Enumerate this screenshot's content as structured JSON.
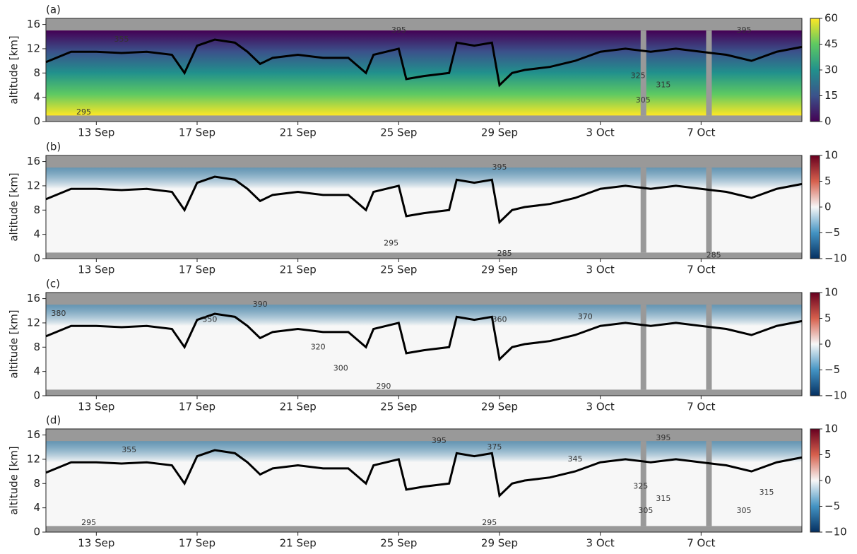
{
  "chart_data": [
    {
      "type": "heatmap",
      "label": "(a)",
      "ylabel": "altitude [km]",
      "xlim": [
        11,
        41
      ],
      "xticks": [
        {
          "value": 13,
          "label": "13 Sep"
        },
        {
          "value": 17,
          "label": "17 Sep"
        },
        {
          "value": 21,
          "label": "21 Sep"
        },
        {
          "value": 25,
          "label": "25 Sep"
        },
        {
          "value": 29,
          "label": "29 Sep"
        },
        {
          "value": 33,
          "label": "3 Oct"
        },
        {
          "value": 37,
          "label": "7 Oct"
        }
      ],
      "ylim": [
        0,
        17
      ],
      "yticks": [
        0,
        4,
        8,
        12,
        16
      ],
      "clim": [
        0,
        60
      ],
      "cticks": [
        0,
        15,
        30,
        45,
        60
      ],
      "colormap": [
        "#440154",
        "#3b528b",
        "#21918c",
        "#5ec962",
        "#fde725"
      ],
      "line": {
        "color": "#000000",
        "x": [
          11,
          12,
          13,
          14,
          15,
          16,
          16.5,
          17,
          17.7,
          18.5,
          19,
          19.5,
          20,
          21,
          22,
          23,
          23.7,
          24,
          25,
          25.3,
          26,
          27,
          27.3,
          28,
          28.7,
          29,
          29.5,
          30,
          31,
          32,
          33,
          34,
          35,
          36,
          37,
          38,
          39,
          40,
          41
        ],
        "values": [
          9.8,
          11.5,
          11.5,
          11.3,
          11.5,
          11,
          8,
          12.5,
          13.5,
          13,
          11.5,
          9.5,
          10.5,
          11,
          10.5,
          10.5,
          8,
          11,
          12,
          7,
          7.5,
          8,
          13,
          12.5,
          13,
          6,
          8,
          8.5,
          9,
          10,
          11.5,
          12,
          11.5,
          12,
          11.5,
          11,
          10,
          11.5,
          12.3
        ]
      },
      "annotations": [
        {
          "text": "355",
          "x": 14,
          "y": 13.5
        },
        {
          "text": "395",
          "x": 25,
          "y": 15
        },
        {
          "text": "325",
          "x": 34.5,
          "y": 7.5
        },
        {
          "text": "315",
          "x": 35.5,
          "y": 6
        },
        {
          "text": "305",
          "x": 34.7,
          "y": 3.5
        },
        {
          "text": "295",
          "x": 12.5,
          "y": 1.5
        },
        {
          "text": "395",
          "x": 38.7,
          "y": 15
        }
      ]
    },
    {
      "type": "heatmap",
      "label": "(b)",
      "ylabel": "altitude [km]",
      "xlim": [
        11,
        41
      ],
      "xticks": [
        {
          "value": 13,
          "label": "13 Sep"
        },
        {
          "value": 17,
          "label": "17 Sep"
        },
        {
          "value": 21,
          "label": "21 Sep"
        },
        {
          "value": 25,
          "label": "25 Sep"
        },
        {
          "value": 29,
          "label": "29 Sep"
        },
        {
          "value": 33,
          "label": "3 Oct"
        },
        {
          "value": 37,
          "label": "7 Oct"
        }
      ],
      "ylim": [
        0,
        17
      ],
      "yticks": [
        0,
        4,
        8,
        12,
        16
      ],
      "clim": [
        -10,
        10
      ],
      "cticks": [
        {
          "value": -10,
          "label": "−10"
        },
        {
          "value": -5,
          "label": "−5"
        },
        0,
        5,
        10
      ],
      "colormap": [
        "#053061",
        "#4393c3",
        "#f7f7f7",
        "#d6604d",
        "#67001f"
      ],
      "line": {
        "color": "#000000",
        "x": [
          11,
          12,
          13,
          14,
          15,
          16,
          16.5,
          17,
          17.7,
          18.5,
          19,
          19.5,
          20,
          21,
          22,
          23,
          23.7,
          24,
          25,
          25.3,
          26,
          27,
          27.3,
          28,
          28.7,
          29,
          29.5,
          30,
          31,
          32,
          33,
          34,
          35,
          36,
          37,
          38,
          39,
          40,
          41
        ],
        "values": [
          9.8,
          11.5,
          11.5,
          11.3,
          11.5,
          11,
          8,
          12.5,
          13.5,
          13,
          11.5,
          9.5,
          10.5,
          11,
          10.5,
          10.5,
          8,
          11,
          12,
          7,
          7.5,
          8,
          13,
          12.5,
          13,
          6,
          8,
          8.5,
          9,
          10,
          11.5,
          12,
          11.5,
          12,
          11.5,
          11,
          10,
          11.5,
          12.3
        ]
      },
      "annotations": [
        {
          "text": "295",
          "x": 24.7,
          "y": 2.5
        },
        {
          "text": "285",
          "x": 29.2,
          "y": 0.8
        },
        {
          "text": "285",
          "x": 37.5,
          "y": 0.5
        },
        {
          "text": "395",
          "x": 29,
          "y": 15
        }
      ]
    },
    {
      "type": "heatmap",
      "label": "(c)",
      "ylabel": "altitude [km]",
      "xlim": [
        11,
        41
      ],
      "xticks": [
        {
          "value": 13,
          "label": "13 Sep"
        },
        {
          "value": 17,
          "label": "17 Sep"
        },
        {
          "value": 21,
          "label": "21 Sep"
        },
        {
          "value": 25,
          "label": "25 Sep"
        },
        {
          "value": 29,
          "label": "29 Sep"
        },
        {
          "value": 33,
          "label": "3 Oct"
        },
        {
          "value": 37,
          "label": "7 Oct"
        }
      ],
      "ylim": [
        0,
        17
      ],
      "yticks": [
        0,
        4,
        8,
        12,
        16
      ],
      "clim": [
        -10,
        10
      ],
      "cticks": [
        {
          "value": -10,
          "label": "−10"
        },
        {
          "value": -5,
          "label": "−5"
        },
        0,
        5,
        10
      ],
      "colormap": [
        "#053061",
        "#4393c3",
        "#f7f7f7",
        "#d6604d",
        "#67001f"
      ],
      "line": {
        "color": "#000000",
        "x": [
          11,
          12,
          13,
          14,
          15,
          16,
          16.5,
          17,
          17.7,
          18.5,
          19,
          19.5,
          20,
          21,
          22,
          23,
          23.7,
          24,
          25,
          25.3,
          26,
          27,
          27.3,
          28,
          28.7,
          29,
          29.5,
          30,
          31,
          32,
          33,
          34,
          35,
          36,
          37,
          38,
          39,
          40,
          41
        ],
        "values": [
          9.8,
          11.5,
          11.5,
          11.3,
          11.5,
          11,
          8,
          12.5,
          13.5,
          13,
          11.5,
          9.5,
          10.5,
          11,
          10.5,
          10.5,
          8,
          11,
          12,
          7,
          7.5,
          8,
          13,
          12.5,
          13,
          6,
          8,
          8.5,
          9,
          10,
          11.5,
          12,
          11.5,
          12,
          11.5,
          11,
          10,
          11.5,
          12.3
        ]
      },
      "annotations": [
        {
          "text": "380",
          "x": 11.5,
          "y": 13.5
        },
        {
          "text": "390",
          "x": 19.5,
          "y": 15
        },
        {
          "text": "350",
          "x": 17.5,
          "y": 12.5
        },
        {
          "text": "320",
          "x": 21.8,
          "y": 8
        },
        {
          "text": "300",
          "x": 22.7,
          "y": 4.5
        },
        {
          "text": "290",
          "x": 24.4,
          "y": 1.5
        },
        {
          "text": "370",
          "x": 32.4,
          "y": 13
        },
        {
          "text": "360",
          "x": 29,
          "y": 12.5
        }
      ]
    },
    {
      "type": "heatmap",
      "label": "(d)",
      "ylabel": "altitude [km]",
      "xlim": [
        11,
        41
      ],
      "xticks": [
        {
          "value": 13,
          "label": "13 Sep"
        },
        {
          "value": 17,
          "label": "17 Sep"
        },
        {
          "value": 21,
          "label": "21 Sep"
        },
        {
          "value": 25,
          "label": "25 Sep"
        },
        {
          "value": 29,
          "label": "29 Sep"
        },
        {
          "value": 33,
          "label": "3 Oct"
        },
        {
          "value": 37,
          "label": "7 Oct"
        }
      ],
      "ylim": [
        0,
        17
      ],
      "yticks": [
        0,
        4,
        8,
        12,
        16
      ],
      "clim": [
        -10,
        10
      ],
      "cticks": [
        {
          "value": -10,
          "label": "−10"
        },
        {
          "value": -5,
          "label": "−5"
        },
        0,
        5,
        10
      ],
      "colormap": [
        "#053061",
        "#4393c3",
        "#f7f7f7",
        "#d6604d",
        "#67001f"
      ],
      "line": {
        "color": "#000000",
        "x": [
          11,
          12,
          13,
          14,
          15,
          16,
          16.5,
          17,
          17.7,
          18.5,
          19,
          19.5,
          20,
          21,
          22,
          23,
          23.7,
          24,
          25,
          25.3,
          26,
          27,
          27.3,
          28,
          28.7,
          29,
          29.5,
          30,
          31,
          32,
          33,
          34,
          35,
          36,
          37,
          38,
          39,
          40,
          41
        ],
        "values": [
          9.8,
          11.5,
          11.5,
          11.3,
          11.5,
          11,
          8,
          12.5,
          13.5,
          13,
          11.5,
          9.5,
          10.5,
          11,
          10.5,
          10.5,
          8,
          11,
          12,
          7,
          7.5,
          8,
          13,
          12.5,
          13,
          6,
          8,
          8.5,
          9,
          10,
          11.5,
          12,
          11.5,
          12,
          11.5,
          11,
          10,
          11.5,
          12.3
        ]
      },
      "annotations": [
        {
          "text": "355",
          "x": 14.3,
          "y": 13.5
        },
        {
          "text": "295",
          "x": 12.7,
          "y": 1.5
        },
        {
          "text": "295",
          "x": 28.6,
          "y": 1.5
        },
        {
          "text": "395",
          "x": 26.6,
          "y": 15
        },
        {
          "text": "375",
          "x": 28.8,
          "y": 14
        },
        {
          "text": "345",
          "x": 32,
          "y": 12
        },
        {
          "text": "325",
          "x": 34.6,
          "y": 7.5
        },
        {
          "text": "315",
          "x": 35.5,
          "y": 5.5
        },
        {
          "text": "305",
          "x": 34.8,
          "y": 3.5
        },
        {
          "text": "305",
          "x": 38.7,
          "y": 3.5
        },
        {
          "text": "315",
          "x": 39.6,
          "y": 6.5
        },
        {
          "text": "395",
          "x": 35.5,
          "y": 15.5
        }
      ]
    }
  ]
}
